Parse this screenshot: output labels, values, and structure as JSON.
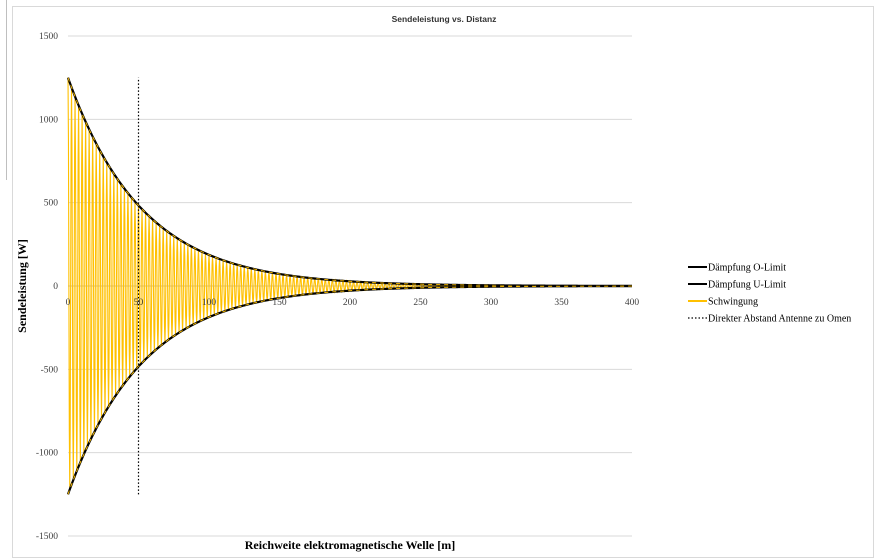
{
  "chart_data": {
    "type": "line",
    "title": "Sendeleistung vs. Distanz",
    "xlabel": "Reichweite elektromagnetische Welle [m]",
    "ylabel": "Sendeleistung [W]",
    "xlim": [
      0,
      400
    ],
    "ylim": [
      -1500,
      1500
    ],
    "x_ticks": [
      "0",
      "50",
      "100",
      "150",
      "200",
      "250",
      "300",
      "350",
      "400"
    ],
    "y_ticks": [
      "1500",
      "1000",
      "500",
      "0",
      "-500",
      "-1000",
      "-1500"
    ],
    "grid": "horizontal",
    "legend_position": "right",
    "series": [
      {
        "name": "Dämpfung O-Limit",
        "color": "#000000",
        "style": "solid",
        "formula": "1250*exp(-0.019*x)",
        "x": [
          0,
          25,
          50,
          75,
          100,
          125,
          150,
          175,
          200,
          250,
          300,
          350,
          400
        ],
        "values": [
          1250,
          777,
          483,
          300,
          187,
          116,
          72,
          45,
          28,
          11,
          4,
          2,
          1
        ]
      },
      {
        "name": "Dämpfung U-Limit",
        "color": "#000000",
        "style": "solid",
        "formula": "-1250*exp(-0.019*x)",
        "x": [
          0,
          25,
          50,
          75,
          100,
          125,
          150,
          175,
          200,
          250,
          300,
          350,
          400
        ],
        "values": [
          -1250,
          -777,
          -483,
          -300,
          -187,
          -116,
          -72,
          -45,
          -28,
          -11,
          -4,
          -2,
          -1
        ]
      },
      {
        "name": "Schwingung",
        "color": "#ffc000",
        "style": "solid",
        "formula": "1250*exp(-0.019*x)*cos(2*pi*x/2.5)",
        "period": 2.5
      },
      {
        "name": "Direkter Abstand Antenne zu Omen",
        "color": "#000000",
        "style": "dotted",
        "x": [
          50,
          50
        ],
        "values": [
          -1250,
          1250
        ]
      }
    ]
  }
}
